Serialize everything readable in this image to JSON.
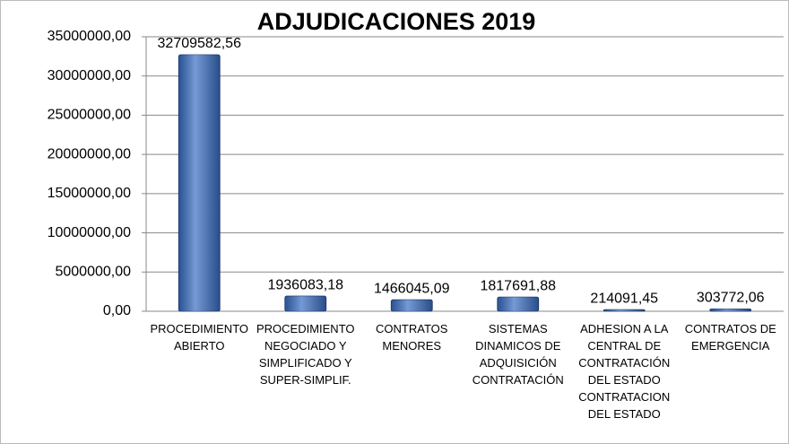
{
  "chart_data": {
    "type": "bar",
    "title": "ADJUDICACIONES 2019",
    "categories": [
      "PROCEDIMIENTO\nABIERTO",
      "PROCEDIMIENTO\nNEGOCIADO Y\nSIMPLIFICADO Y\nSUPER-SIMPLIF.",
      "CONTRATOS\nMENORES",
      "SISTEMAS\nDINAMICOS DE\nADQUISICIÓN\nCONTRATACIÓN",
      "ADHESION A LA\nCENTRAL DE\nCONTRATACIÓN\nDEL ESTADO\nCONTRATACION\nDEL ESTADO",
      "CONTRATOS DE\nEMERGENCIA"
    ],
    "values": [
      32709582.56,
      1936083.18,
      1466045.09,
      1817691.88,
      214091.45,
      303772.06
    ],
    "value_labels": [
      "32709582,56",
      "1936083,18",
      "1466045,09",
      "1817691,88",
      "214091,45",
      "303772,06"
    ],
    "color": "#3a6fc4",
    "ylim": [
      0,
      35000000
    ],
    "yticks": [
      {
        "value": 0,
        "label": "0,00"
      },
      {
        "value": 5000000,
        "label": "5000000,00"
      },
      {
        "value": 10000000,
        "label": "10000000,00"
      },
      {
        "value": 15000000,
        "label": "15000000,00"
      },
      {
        "value": 20000000,
        "label": "20000000,00"
      },
      {
        "value": 25000000,
        "label": "25000000,00"
      },
      {
        "value": 30000000,
        "label": "30000000,00"
      },
      {
        "value": 35000000,
        "label": "35000000,00"
      }
    ],
    "grid": true
  }
}
